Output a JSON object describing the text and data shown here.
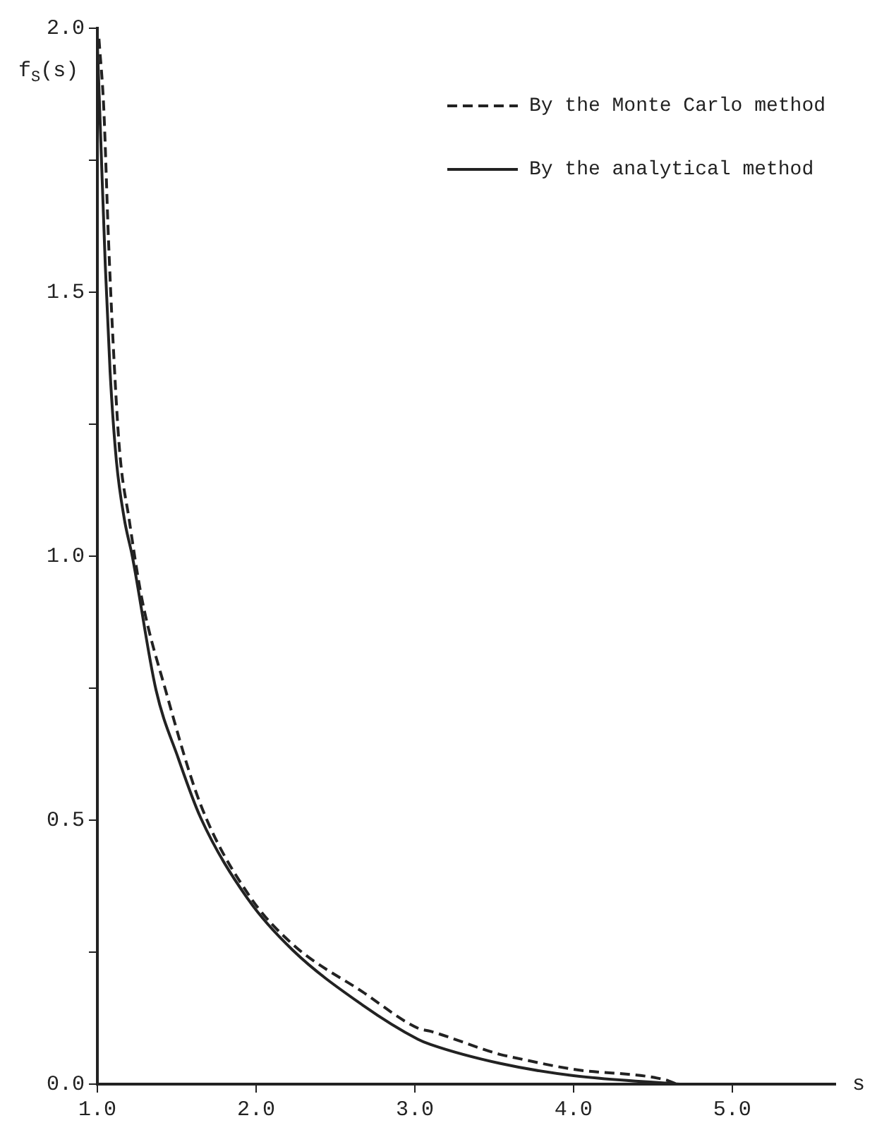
{
  "chart_data": {
    "type": "line",
    "ylabel": "f$_{S}$(s)",
    "xlabel": "s",
    "legend": "top right",
    "grid": false,
    "marker": "none",
    "xlim": [
      1.0,
      5.65
    ],
    "xticks": [
      {
        "value": 1,
        "label": "1.0"
      },
      {
        "value": 2,
        "label": "2.0"
      },
      {
        "value": 3,
        "label": "3.0"
      },
      {
        "value": 4,
        "label": "4.0"
      },
      {
        "value": 5,
        "label": "5.0"
      }
    ],
    "ylim": [
      0,
      2.0
    ],
    "yticks": [
      {
        "value": 0,
        "label": "0.0"
      },
      {
        "value": 0.25,
        "label": null
      },
      {
        "value": 0.5,
        "label": "0.5"
      },
      {
        "value": 0.75,
        "label": null
      },
      {
        "value": 1,
        "label": "1.0"
      },
      {
        "value": 1.25,
        "label": null
      },
      {
        "value": 1.5,
        "label": "1.5"
      },
      {
        "value": 1.75,
        "label": null
      },
      {
        "value": 2,
        "label": "2.0"
      }
    ],
    "series": [
      {
        "name": "By the Monte Carlo method",
        "color": "#222222",
        "line_style": "dashed",
        "x": [
          1.01,
          1.04,
          1.07,
          1.1,
          1.14,
          1.2,
          1.28,
          1.43,
          1.65,
          1.95,
          2.23,
          2.67,
          3.02,
          3.1,
          3.54,
          3.6,
          4.0,
          4.58,
          4.65
        ],
        "values": [
          1.98,
          1.85,
          1.6,
          1.4,
          1.2,
          1.07,
          0.92,
          0.746,
          0.53,
          0.36,
          0.265,
          0.175,
          0.106,
          0.1,
          0.056,
          0.052,
          0.028,
          0.008,
          0.0
        ]
      },
      {
        "name": "By the analytical method",
        "color": "#222222",
        "line_style": "solid",
        "x": [
          1.0,
          1.02,
          1.05,
          1.08,
          1.12,
          1.17,
          1.22,
          1.37,
          1.51,
          1.65,
          1.95,
          2.23,
          2.67,
          3.02,
          3.1,
          3.54,
          4.0,
          4.67
        ],
        "values": [
          1.97,
          1.8,
          1.55,
          1.35,
          1.18,
          1.07,
          1.0,
          0.746,
          0.617,
          0.505,
          0.35,
          0.254,
          0.15,
          0.085,
          0.075,
          0.039,
          0.016,
          0.0
        ]
      }
    ]
  }
}
